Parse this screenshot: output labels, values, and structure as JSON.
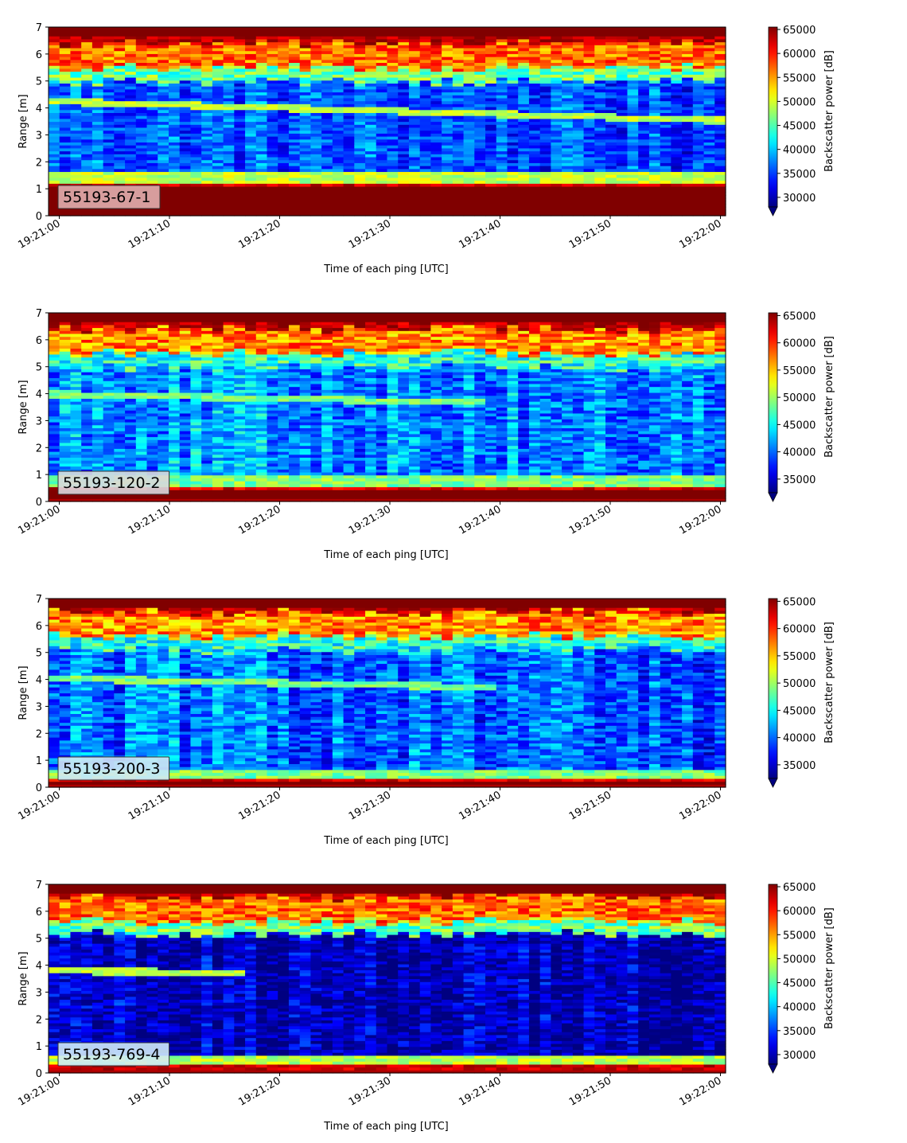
{
  "chart_data": [
    {
      "type": "heatmap",
      "label": "55193-67-1",
      "label_color": "#e0aeae",
      "xlabel": "Time of each ping [UTC]",
      "ylabel": "Range [m]",
      "colorbar_label": "Backscatter power [dB]",
      "xticks": [
        "19:21:00",
        "19:21:10",
        "19:21:20",
        "19:21:30",
        "19:21:40",
        "19:21:50",
        "19:22:00"
      ],
      "yticks": [
        0,
        1,
        2,
        3,
        4,
        5,
        6,
        7
      ],
      "ylim": [
        0,
        7
      ],
      "cbar_ticks": [
        30000,
        35000,
        40000,
        45000,
        50000,
        55000,
        60000,
        65000
      ],
      "cbar_ticklabels": [
        "30000",
        "35000",
        "40000",
        "45000",
        "50000",
        "55000",
        "60000",
        "65000"
      ],
      "cbar_range": [
        28000,
        65500
      ],
      "cbar_extend": "min",
      "profile": {
        "surface": 6.4,
        "bottom_band": 1.25,
        "track_start": 4.25,
        "track_end": 3.55,
        "track_fade": 60,
        "base": 36500
      }
    },
    {
      "type": "heatmap",
      "label": "55193-120-2",
      "label_color": "#d8d8de",
      "xlabel": "Time of each ping [UTC]",
      "ylabel": "Range [m]",
      "colorbar_label": "Backscatter power [dB]",
      "xticks": [
        "19:21:00",
        "19:21:10",
        "19:21:20",
        "19:21:30",
        "19:21:40",
        "19:21:50",
        "19:22:00"
      ],
      "yticks": [
        0,
        1,
        2,
        3,
        4,
        5,
        6,
        7
      ],
      "ylim": [
        0,
        7
      ],
      "cbar_ticks": [
        35000,
        40000,
        45000,
        50000,
        55000,
        60000,
        65000
      ],
      "cbar_ticklabels": [
        "35000",
        "40000",
        "45000",
        "50000",
        "55000",
        "60000",
        "65000"
      ],
      "cbar_range": [
        32500,
        65500
      ],
      "cbar_extend": "min",
      "profile": {
        "surface": 6.4,
        "bottom_band": 0.6,
        "track_start": 4.0,
        "track_end": 3.5,
        "track_fade": 37,
        "base": 42000
      }
    },
    {
      "type": "heatmap",
      "label": "55193-200-3",
      "label_color": "#cfe8f4",
      "xlabel": "Time of each ping [UTC]",
      "ylabel": "Range [m]",
      "colorbar_label": "Backscatter power [dB]",
      "xticks": [
        "19:21:00",
        "19:21:10",
        "19:21:20",
        "19:21:30",
        "19:21:40",
        "19:21:50",
        "19:22:00"
      ],
      "yticks": [
        0,
        1,
        2,
        3,
        4,
        5,
        6,
        7
      ],
      "ylim": [
        0,
        7
      ],
      "cbar_ticks": [
        35000,
        40000,
        45000,
        50000,
        55000,
        60000,
        65000
      ],
      "cbar_ticklabels": [
        "35000",
        "40000",
        "45000",
        "50000",
        "55000",
        "60000",
        "65000"
      ],
      "cbar_range": [
        32500,
        65500
      ],
      "cbar_extend": "min",
      "profile": {
        "surface": 6.5,
        "bottom_band": 0.35,
        "track_start": 4.05,
        "track_end": 3.55,
        "track_fade": 38,
        "base": 40500
      }
    },
    {
      "type": "heatmap",
      "label": "55193-769-4",
      "label_color": "#cfeaf6",
      "xlabel": "Time of each ping [UTC]",
      "ylabel": "Range [m]",
      "colorbar_label": "Backscatter power [dB]",
      "xticks": [
        "19:21:00",
        "19:21:10",
        "19:21:20",
        "19:21:30",
        "19:21:40",
        "19:21:50",
        "19:22:00"
      ],
      "yticks": [
        0,
        1,
        2,
        3,
        4,
        5,
        6,
        7
      ],
      "ylim": [
        0,
        7
      ],
      "cbar_ticks": [
        30000,
        35000,
        40000,
        45000,
        50000,
        55000,
        60000,
        65000
      ],
      "cbar_ticklabels": [
        "30000",
        "35000",
        "40000",
        "45000",
        "50000",
        "55000",
        "60000",
        "65000"
      ],
      "cbar_range": [
        28000,
        65500
      ],
      "cbar_extend": "min",
      "profile": {
        "surface": 6.55,
        "bottom_band": 0.3,
        "track_start": 3.8,
        "track_end": 3.55,
        "track_fade": 15,
        "base": 31000
      }
    }
  ]
}
